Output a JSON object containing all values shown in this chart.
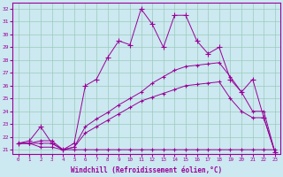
{
  "xlabel": "Windchill (Refroidissement éolien,°C)",
  "xlim_min": -0.5,
  "xlim_max": 23.5,
  "ylim_min": 20.7,
  "ylim_max": 32.5,
  "yticks": [
    21,
    22,
    23,
    24,
    25,
    26,
    27,
    28,
    29,
    30,
    31,
    32
  ],
  "xticks": [
    0,
    1,
    2,
    3,
    4,
    5,
    6,
    7,
    8,
    9,
    10,
    11,
    12,
    13,
    14,
    15,
    16,
    17,
    18,
    19,
    20,
    21,
    22,
    23
  ],
  "bg_color": "#cce8f0",
  "line_color": "#990099",
  "grid_color": "#99ccbb",
  "lines": [
    {
      "x": [
        0,
        1,
        2,
        3,
        4,
        5,
        6,
        7,
        8,
        9,
        10,
        11,
        12,
        13,
        14,
        15,
        16,
        17,
        18,
        19,
        20,
        21,
        22,
        23
      ],
      "y": [
        21.5,
        21.5,
        21.2,
        21.2,
        21.0,
        21.0,
        21.0,
        21.0,
        21.0,
        21.0,
        21.0,
        21.0,
        21.0,
        21.0,
        21.0,
        21.0,
        21.0,
        21.0,
        21.0,
        21.0,
        21.0,
        21.0,
        21.0,
        21.0
      ],
      "marker": "+",
      "ms": 3
    },
    {
      "x": [
        0,
        1,
        2,
        3,
        4,
        5,
        6,
        7,
        8,
        9,
        10,
        11,
        12,
        13,
        14,
        15,
        16,
        17,
        18,
        19,
        20,
        21,
        22,
        23
      ],
      "y": [
        21.5,
        21.5,
        21.5,
        21.5,
        21.0,
        21.2,
        22.3,
        22.8,
        23.3,
        23.8,
        24.3,
        24.8,
        25.1,
        25.4,
        25.7,
        26.0,
        26.1,
        26.2,
        26.3,
        25.0,
        24.0,
        23.5,
        23.5,
        20.8
      ],
      "marker": "+",
      "ms": 3
    },
    {
      "x": [
        0,
        1,
        2,
        3,
        4,
        5,
        6,
        7,
        8,
        9,
        10,
        11,
        12,
        13,
        14,
        15,
        16,
        17,
        18,
        19,
        20,
        21,
        22,
        23
      ],
      "y": [
        21.5,
        21.5,
        21.7,
        21.7,
        21.0,
        21.2,
        22.8,
        23.4,
        23.9,
        24.5,
        25.0,
        25.5,
        26.2,
        26.7,
        27.2,
        27.5,
        27.6,
        27.7,
        27.8,
        26.7,
        25.5,
        24.0,
        24.0,
        20.8
      ],
      "marker": "+",
      "ms": 3
    },
    {
      "x": [
        0,
        1,
        2,
        3,
        4,
        5,
        6,
        7,
        8,
        9,
        10,
        11,
        12,
        13,
        14,
        15,
        16,
        17,
        18,
        19,
        20,
        21,
        22,
        23
      ],
      "y": [
        21.5,
        21.7,
        22.8,
        21.5,
        21.0,
        21.5,
        26.0,
        26.5,
        28.2,
        29.5,
        29.2,
        32.0,
        30.8,
        29.0,
        31.5,
        31.5,
        29.5,
        28.5,
        29.0,
        26.5,
        25.5,
        26.5,
        23.5,
        20.8
      ],
      "marker": "+",
      "ms": 4
    }
  ]
}
